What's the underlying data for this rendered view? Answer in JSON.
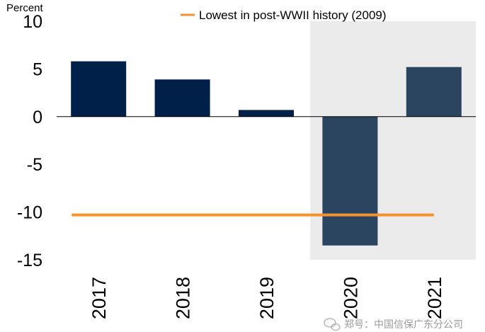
{
  "chart_data": {
    "type": "bar",
    "ylabel": "Percent",
    "ylim": [
      -15,
      10
    ],
    "yticks": [
      10,
      5,
      0,
      -5,
      -10,
      -15
    ],
    "categories": [
      "2017",
      "2018",
      "2019",
      "2020",
      "2021"
    ],
    "values": [
      5.8,
      3.9,
      0.7,
      -13.5,
      5.2
    ],
    "bar_colors": [
      "#00204a",
      "#00204a",
      "#00204a",
      "#2b4561",
      "#2b4561"
    ],
    "shaded_categories": [
      "2020",
      "2021"
    ],
    "shade_color": "#ebebeb",
    "reference_line": {
      "label": "Lowest in post-WWII history (2009)",
      "value": -10.3,
      "color": "#f5922f"
    },
    "legend_position": "top",
    "grid": false
  },
  "watermark": {
    "text": "郑号：中国信保广东分公司"
  }
}
